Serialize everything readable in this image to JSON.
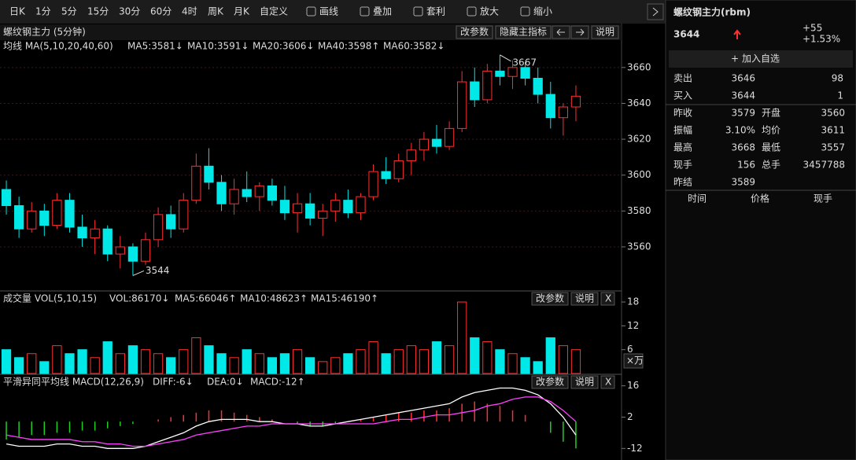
{
  "toolbar": {
    "periods": [
      "日K",
      "1分",
      "5分",
      "15分",
      "30分",
      "60分",
      "4时",
      "周K",
      "月K",
      "自定义"
    ],
    "active": 2,
    "tools": [
      "画线",
      "叠加",
      "套利",
      "放大",
      "缩小"
    ]
  },
  "chart_data": [
    {
      "type": "candlestick",
      "title": "螺纹钢主力 (5分钟)",
      "buttons": [
        "改参数",
        "隐藏主指标",
        "说明"
      ],
      "params": [
        {
          "label": "均线 MA(5,10,20,40,60)",
          "color": "#dddddd"
        },
        {
          "label": "MA5:3581↓",
          "color": "#ffffff"
        },
        {
          "label": "MA10:3591↓",
          "color": "#ff40ff"
        },
        {
          "label": "MA20:3606↓",
          "color": "#20e020"
        },
        {
          "label": "MA40:3598↑",
          "color": "#3040ff"
        },
        {
          "label": "MA60:3582↓",
          "color": "#ff8040"
        }
      ],
      "ylim": [
        3535,
        3670
      ],
      "yticks": [
        3560,
        3580,
        3600,
        3620,
        3640,
        3660
      ],
      "grid": true,
      "up_color": "#ff3030",
      "down_color": "#00e8e8",
      "candles": [
        [
          3592,
          3597,
          3578,
          3583
        ],
        [
          3583,
          3588,
          3565,
          3570
        ],
        [
          3570,
          3585,
          3568,
          3580
        ],
        [
          3580,
          3584,
          3566,
          3572
        ],
        [
          3572,
          3590,
          3570,
          3586
        ],
        [
          3586,
          3590,
          3568,
          3571
        ],
        [
          3571,
          3578,
          3560,
          3565
        ],
        [
          3565,
          3575,
          3556,
          3570
        ],
        [
          3570,
          3572,
          3552,
          3556
        ],
        [
          3556,
          3566,
          3548,
          3560
        ],
        [
          3560,
          3562,
          3544,
          3552
        ],
        [
          3552,
          3568,
          3550,
          3564
        ],
        [
          3564,
          3582,
          3560,
          3578
        ],
        [
          3578,
          3583,
          3565,
          3570
        ],
        [
          3570,
          3590,
          3568,
          3586
        ],
        [
          3586,
          3612,
          3584,
          3605
        ],
        [
          3605,
          3615,
          3592,
          3596
        ],
        [
          3596,
          3600,
          3580,
          3584
        ],
        [
          3584,
          3598,
          3578,
          3592
        ],
        [
          3592,
          3602,
          3585,
          3588
        ],
        [
          3588,
          3596,
          3580,
          3594
        ],
        [
          3594,
          3598,
          3583,
          3586
        ],
        [
          3586,
          3594,
          3575,
          3579
        ],
        [
          3579,
          3590,
          3568,
          3584
        ],
        [
          3584,
          3590,
          3572,
          3576
        ],
        [
          3576,
          3584,
          3566,
          3580
        ],
        [
          3580,
          3590,
          3574,
          3586
        ],
        [
          3586,
          3592,
          3576,
          3579
        ],
        [
          3579,
          3590,
          3575,
          3588
        ],
        [
          3588,
          3606,
          3586,
          3602
        ],
        [
          3602,
          3610,
          3595,
          3598
        ],
        [
          3598,
          3612,
          3596,
          3608
        ],
        [
          3608,
          3618,
          3600,
          3614
        ],
        [
          3614,
          3624,
          3608,
          3620
        ],
        [
          3620,
          3628,
          3612,
          3616
        ],
        [
          3616,
          3630,
          3614,
          3626
        ],
        [
          3626,
          3658,
          3624,
          3652
        ],
        [
          3652,
          3660,
          3638,
          3642
        ],
        [
          3642,
          3662,
          3640,
          3658
        ],
        [
          3658,
          3667,
          3650,
          3655
        ],
        [
          3655,
          3664,
          3648,
          3660
        ],
        [
          3660,
          3663,
          3650,
          3654
        ],
        [
          3654,
          3660,
          3640,
          3645
        ],
        [
          3645,
          3652,
          3626,
          3632
        ],
        [
          3632,
          3640,
          3622,
          3638
        ],
        [
          3638,
          3650,
          3630,
          3644
        ]
      ],
      "high_label": 3667,
      "low_label": 3544
    },
    {
      "type": "volume",
      "buttons": [
        "改参数",
        "说明",
        "X"
      ],
      "unit_label": "×万",
      "params": [
        {
          "label": "成交量 VOL(5,10,15)",
          "color": "#dddddd"
        },
        {
          "label": "VOL:86170↓",
          "color": "#ffffff"
        },
        {
          "label": "MA5:66046↑",
          "color": "#ff40ff"
        },
        {
          "label": "MA10:48623↑",
          "color": "#20e020"
        },
        {
          "label": "MA15:46190↑",
          "color": "#3040ff"
        }
      ],
      "ylim": [
        0,
        19
      ],
      "yticks": [
        6,
        12,
        18
      ],
      "values": [
        6,
        4,
        5,
        3,
        7,
        5,
        6,
        4,
        8,
        5,
        7,
        6,
        5,
        4,
        6,
        9,
        7,
        5,
        4,
        6,
        5,
        4,
        5,
        6,
        4,
        3,
        4,
        5,
        6,
        8,
        5,
        6,
        7,
        6,
        8,
        7,
        18,
        9,
        8,
        6,
        5,
        4,
        3,
        9,
        7,
        6
      ]
    },
    {
      "type": "macd",
      "buttons": [
        "改参数",
        "说明",
        "X"
      ],
      "params": [
        {
          "label": "平滑异同平均线 MACD(12,26,9)",
          "color": "#dddddd"
        },
        {
          "label": "DIFF:-6↓",
          "color": "#ffffff"
        },
        {
          "label": "DEA:0↓",
          "color": "#ff40ff"
        },
        {
          "label": "MACD:-12↑",
          "color": "#20e020"
        }
      ],
      "ylim": [
        -14,
        18
      ],
      "yticks": [
        -12,
        2,
        16
      ],
      "pos_color": "#ff3030",
      "neg_color": "#20d020",
      "dif_color": "#ffffff",
      "dea_color": "#ff40ff",
      "hist": [
        -8,
        -7,
        -6,
        -6,
        -5,
        -5,
        -4,
        -4,
        -3,
        -2,
        -1,
        0,
        1,
        2,
        3,
        4,
        5,
        5,
        4,
        3,
        2,
        1,
        0,
        -1,
        -2,
        -2,
        -1,
        0,
        1,
        2,
        3,
        4,
        4,
        5,
        5,
        6,
        8,
        9,
        8,
        7,
        5,
        3,
        0,
        -5,
        -9,
        -12
      ],
      "dif": [
        -10,
        -11,
        -11,
        -11,
        -10,
        -10,
        -11,
        -11,
        -12,
        -12,
        -12,
        -11,
        -9,
        -7,
        -5,
        -2,
        0,
        1,
        1,
        1,
        0,
        0,
        -1,
        -1,
        -2,
        -2,
        -1,
        0,
        1,
        2,
        3,
        4,
        5,
        6,
        7,
        8,
        11,
        13,
        14,
        15,
        15,
        14,
        12,
        8,
        2,
        -6
      ],
      "dea": [
        -6,
        -7,
        -8,
        -8,
        -8,
        -8,
        -9,
        -9,
        -10,
        -10,
        -11,
        -11,
        -10,
        -9,
        -8,
        -6,
        -5,
        -4,
        -3,
        -2,
        -2,
        -1,
        -1,
        -1,
        -1,
        -1,
        -1,
        -1,
        -1,
        -1,
        0,
        1,
        1,
        2,
        3,
        3,
        4,
        5,
        7,
        8,
        10,
        11,
        11,
        9,
        5,
        0
      ]
    }
  ],
  "quote": {
    "title": "螺纹钢主力(rbm)",
    "price": 3644,
    "change": "+55",
    "change_pct": "+1.53%",
    "add_button": "加入自选",
    "book": [
      {
        "label": "卖出",
        "price": 3646,
        "qty": 98
      },
      {
        "label": "买入",
        "price": 3644,
        "qty": 1
      }
    ],
    "stats": [
      {
        "label": "昨收",
        "value": 3579,
        "color": "#20e020"
      },
      {
        "label": "开盘",
        "value": 3560,
        "color": "#20e020"
      },
      {
        "label": "振幅",
        "value": "3.10%",
        "color": "#ff3030"
      },
      {
        "label": "均价",
        "value": 3611,
        "color": "#ff3030"
      },
      {
        "label": "最高",
        "value": 3668,
        "color": "#ff3030"
      },
      {
        "label": "最低",
        "value": 3557,
        "color": "#20e020"
      },
      {
        "label": "现手",
        "value": 156,
        "color": "#ffff60"
      },
      {
        "label": "总手",
        "value": 3457788,
        "color": "#ffff60"
      },
      {
        "label": "昨结",
        "value": 3589,
        "color": "#ffffff"
      }
    ],
    "ticks_header": [
      "时间",
      "价格",
      "现手"
    ]
  }
}
